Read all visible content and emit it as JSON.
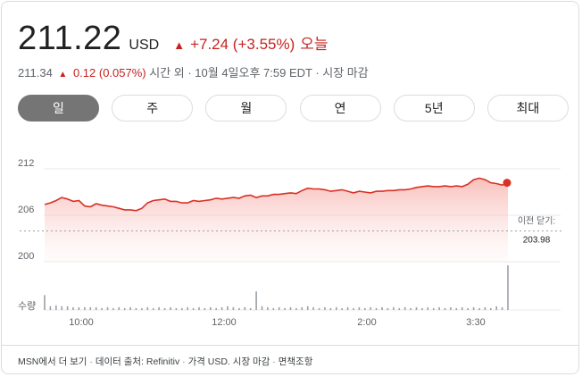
{
  "quote": {
    "price": "211.22",
    "currency": "USD",
    "change": "+7.24 (+3.55%)",
    "period": "오늘",
    "after_hours_price": "211.34",
    "after_hours_change": "0.12 (0.057%)",
    "after_hours_label": "시간 외 · 10월 4일오후 7:59 EDT · 시장 마감"
  },
  "tabs": [
    {
      "label": "일",
      "active": true
    },
    {
      "label": "주",
      "active": false
    },
    {
      "label": "월",
      "active": false
    },
    {
      "label": "연",
      "active": false
    },
    {
      "label": "5년",
      "active": false
    },
    {
      "label": "최대",
      "active": false
    }
  ],
  "chart_data": {
    "type": "line",
    "title": "",
    "xlabel": "",
    "ylabel": "",
    "y_ticks": [
      "212",
      "206",
      "200"
    ],
    "ylim": [
      200,
      212
    ],
    "x_ticks": [
      "10:00",
      "12:00",
      "2:00",
      "3:30"
    ],
    "volume_label": "수량",
    "previous_close_label": "이전 닫기:",
    "previous_close": 203.98,
    "previous_close_text": "203.98",
    "line_color": "#d93025",
    "series": [
      {
        "values": [
          207.4,
          207.6,
          207.9,
          208.3,
          208.1,
          207.8,
          207.9,
          207.2,
          207.1,
          207.5,
          207.3,
          207.2,
          207.1,
          206.9,
          206.7,
          206.7,
          206.6,
          206.9,
          207.6,
          207.9,
          208.0,
          208.1,
          207.8,
          207.8,
          207.6,
          207.6,
          207.9,
          207.8,
          207.9,
          208.0,
          208.2,
          208.1,
          208.2,
          208.3,
          208.2,
          208.5,
          208.6,
          208.3,
          208.5,
          208.5,
          208.7,
          208.7,
          208.8,
          208.9,
          208.8,
          209.2,
          209.5,
          209.4,
          209.4,
          209.3,
          209.1,
          209.2,
          209.3,
          209.1,
          208.9,
          209.1,
          209.0,
          208.9,
          209.1,
          209.1,
          209.2,
          209.2,
          209.3,
          209.3,
          209.4,
          209.6,
          209.7,
          209.8,
          209.7,
          209.7,
          209.8,
          209.7,
          209.8,
          209.7,
          210.0,
          210.6,
          210.8,
          210.6,
          210.2,
          210.1,
          209.9,
          210.2
        ]
      }
    ],
    "volume": [
      16,
      4,
      5,
      4,
      4,
      3,
      3,
      3,
      3,
      3,
      2,
      3,
      2,
      3,
      2,
      3,
      2,
      2,
      3,
      2,
      3,
      2,
      3,
      2,
      2,
      3,
      2,
      3,
      2,
      3,
      2,
      3,
      4,
      3,
      2,
      3,
      2,
      20,
      4,
      3,
      2,
      3,
      2,
      3,
      2,
      3,
      4,
      3,
      2,
      3,
      2,
      3,
      2,
      3,
      2,
      3,
      2,
      3,
      2,
      3,
      2,
      3,
      2,
      3,
      2,
      3,
      2,
      3,
      2,
      3,
      2,
      3,
      2,
      3,
      2,
      3,
      2,
      3,
      2,
      4,
      3,
      48
    ]
  },
  "footer": {
    "more_on_msn": "MSN에서 더 보기",
    "data_source": "데이터 출처: Refinitiv",
    "price_info": "가격 USD. 시장 마감",
    "disclaimer": "면책조항"
  }
}
